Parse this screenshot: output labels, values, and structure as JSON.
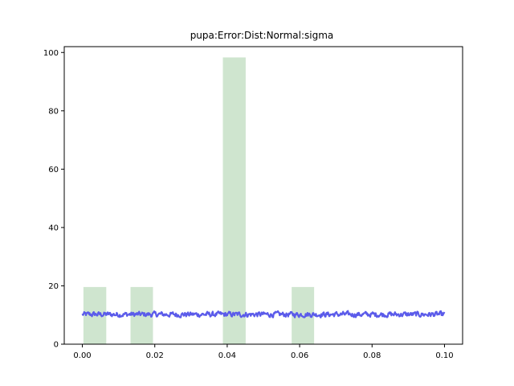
{
  "chart_data": {
    "type": "bar",
    "title": "pupa:Error:Dist:Normal:sigma",
    "xlabel": "",
    "ylabel": "",
    "xlim": [
      -0.005,
      0.105
    ],
    "ylim": [
      0,
      102
    ],
    "x_ticks": [
      0.0,
      0.02,
      0.04,
      0.06,
      0.08,
      0.1
    ],
    "x_tick_labels": [
      "0.00",
      "0.02",
      "0.04",
      "0.06",
      "0.08",
      "0.10"
    ],
    "y_ticks": [
      0,
      20,
      40,
      60,
      80,
      100
    ],
    "y_tick_labels": [
      "0",
      "20",
      "40",
      "60",
      "80",
      "100"
    ],
    "grid": false,
    "bars": [
      {
        "x_start": 0.0003,
        "x_end": 0.0066,
        "value": 19.6
      },
      {
        "x_start": 0.0133,
        "x_end": 0.0195,
        "value": 19.6
      },
      {
        "x_start": 0.0388,
        "x_end": 0.0451,
        "value": 98.3
      },
      {
        "x_start": 0.0578,
        "x_end": 0.064,
        "value": 19.6
      }
    ],
    "line": {
      "x_start": 0.0,
      "x_end": 0.1,
      "mean": 10.2,
      "amplitude": 1.4
    },
    "colors": {
      "bar": "#cfe5cf",
      "line": "#5b5bea"
    }
  }
}
